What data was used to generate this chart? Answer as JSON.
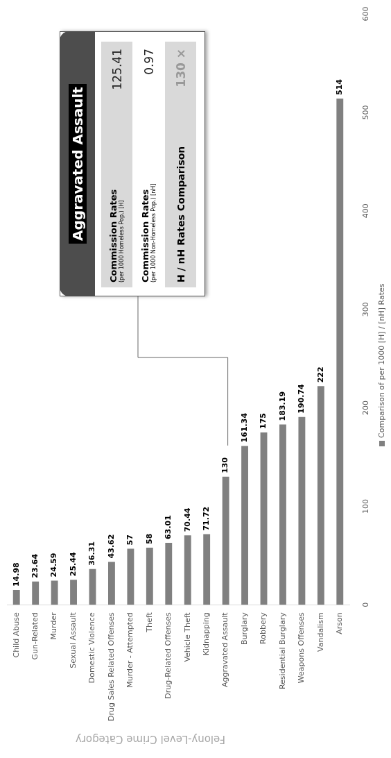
{
  "chart_data": {
    "type": "bar",
    "xlabel": "Felony-Level Crime Category",
    "categories": [
      "Child Abuse",
      "Gun-Related",
      "Murder",
      "Sexual Assault",
      "Domestic Violence",
      "Drug Sales Related Offenses",
      "Murder - Attempted",
      "Theft",
      "Drug-Related Offenses",
      "Vehicle Theft",
      "Kidnapping",
      "Aggravated Assault",
      "Burglary",
      "Robbery",
      "Residential Burglary",
      "Weapons Offenses",
      "Vandalism",
      "Arson"
    ],
    "series": [
      {
        "name": "Comparison of per 1000 [H] / [nH] Rates",
        "color": "#808080",
        "values": [
          14.98,
          23.64,
          24.59,
          25.44,
          36.31,
          43.62,
          57,
          58,
          63.01,
          70.44,
          71.72,
          130,
          161.34,
          175,
          183.19,
          190.74,
          222,
          514
        ]
      }
    ],
    "ylim": [
      0,
      600
    ],
    "yticks": [
      0,
      100,
      200,
      300,
      400,
      500,
      600
    ],
    "data_labels": true,
    "grid": false,
    "legend": "right",
    "annotations": [
      "Aggravated Assault",
      "Commission Rates",
      "(per 1000 Homeless Pop.) [H]",
      "125.41",
      "Commission Rates",
      "(per 1000 Non-Homeless Pop.) [nH]",
      "0.97",
      "H / nH Rates Comparison",
      "130 ×"
    ]
  }
}
